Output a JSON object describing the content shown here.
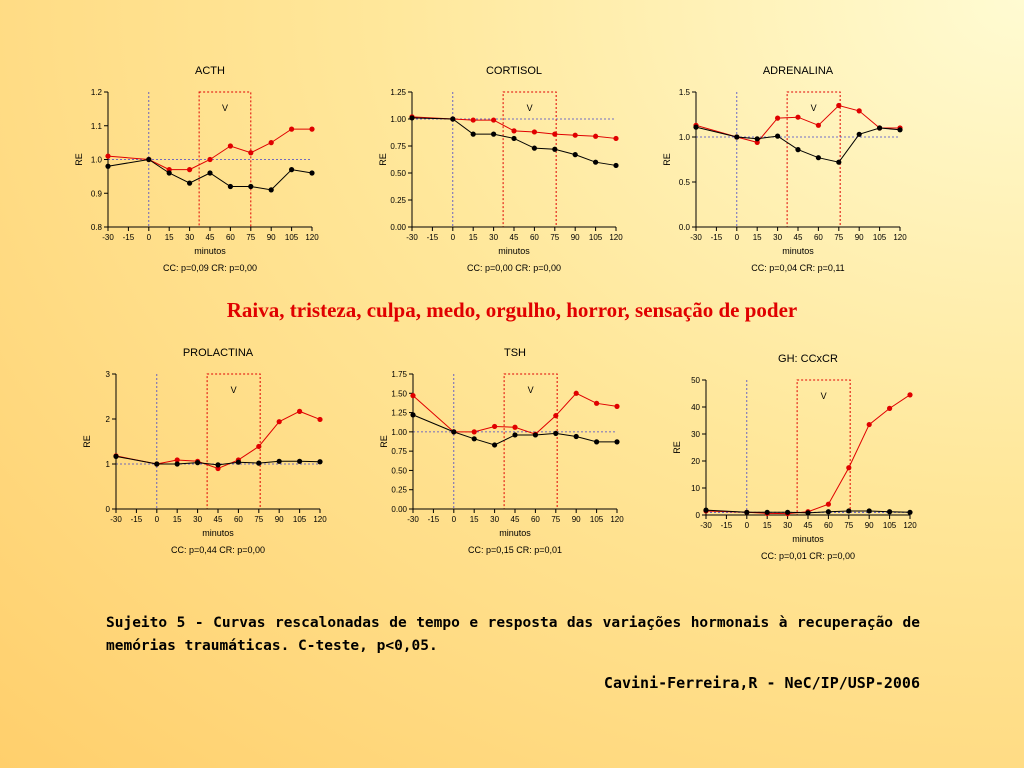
{
  "slide": {
    "headline": "Raiva, tristeza, culpa, medo, orgulho, horror, sensação de poder",
    "caption": "Sujeito 5 - Curvas rescalonadas de tempo e resposta das variações hormonais à recuperação de memórias traumáticas. C-teste, p<0,05.",
    "credit": "Cavini-Ferreira,R - NeC/IP/USP-2006"
  },
  "colors": {
    "series_red": "#e00000",
    "series_black": "#000000",
    "baseline": "#4444cc",
    "window": "#e00000"
  },
  "chart_data": [
    {
      "type": "line",
      "title": "ACTH",
      "xlabel": "minutos",
      "ylabel": "RE",
      "x": [
        -30,
        -15,
        0,
        15,
        30,
        45,
        60,
        75,
        90,
        105,
        120
      ],
      "xlim": [
        -30,
        120
      ],
      "ylim": [
        0.8,
        1.2
      ],
      "yticks": [
        0.8,
        0.9,
        1.0,
        1.1,
        1.2
      ],
      "ytick_labels": [
        "0.8",
        "0.9",
        "1.0",
        "1.1",
        "1.2"
      ],
      "window": [
        37,
        75
      ],
      "window_label": "V",
      "series": [
        {
          "color": "#e00000",
          "values": [
            1.01,
            null,
            1.0,
            0.97,
            0.97,
            1.0,
            1.04,
            1.02,
            1.05,
            1.09,
            1.09
          ]
        },
        {
          "color": "#000000",
          "values": [
            0.98,
            null,
            1.0,
            0.96,
            0.93,
            0.96,
            0.92,
            0.92,
            0.91,
            0.97,
            0.96
          ]
        }
      ],
      "stats": "CC: p=0,09 CR: p=0,00"
    },
    {
      "type": "line",
      "title": "CORTISOL",
      "xlabel": "minutos",
      "ylabel": "RE",
      "x": [
        -30,
        -15,
        0,
        15,
        30,
        45,
        60,
        75,
        90,
        105,
        120
      ],
      "xlim": [
        -30,
        120
      ],
      "ylim": [
        0,
        1.25
      ],
      "yticks": [
        0,
        0.25,
        0.5,
        0.75,
        1.0,
        1.25
      ],
      "ytick_labels": [
        "0.00",
        "0.25",
        "0.50",
        "0.75",
        "1.00",
        "1.25"
      ],
      "window": [
        37,
        76
      ],
      "window_label": "V",
      "series": [
        {
          "color": "#e00000",
          "values": [
            1.02,
            null,
            1.0,
            0.99,
            0.99,
            0.89,
            0.88,
            0.86,
            0.85,
            0.84,
            0.82
          ]
        },
        {
          "color": "#000000",
          "values": [
            1.01,
            null,
            1.0,
            0.86,
            0.86,
            0.82,
            0.73,
            0.72,
            0.67,
            0.6,
            0.57
          ]
        }
      ],
      "stats": "CC: p=0,00 CR: p=0,00"
    },
    {
      "type": "line",
      "title": "ADRENALINA",
      "xlabel": "minutos",
      "ylabel": "RE",
      "x": [
        -30,
        -15,
        0,
        15,
        30,
        45,
        60,
        75,
        90,
        105,
        120
      ],
      "xlim": [
        -30,
        120
      ],
      "ylim": [
        0,
        1.5
      ],
      "yticks": [
        0,
        0.5,
        1.0,
        1.5
      ],
      "ytick_labels": [
        "0.0",
        "0.5",
        "1.0",
        "1.5"
      ],
      "window": [
        37,
        76
      ],
      "window_label": "V",
      "series": [
        {
          "color": "#e00000",
          "values": [
            1.13,
            null,
            1.0,
            0.94,
            1.21,
            1.22,
            1.13,
            1.35,
            1.29,
            1.1,
            1.1
          ]
        },
        {
          "color": "#000000",
          "values": [
            1.11,
            null,
            1.0,
            0.98,
            1.01,
            0.86,
            0.77,
            0.72,
            1.03,
            1.1,
            1.08
          ]
        }
      ],
      "stats": "CC: p=0,04 CR: p=0,11"
    },
    {
      "type": "line",
      "title": "PROLACTINA",
      "xlabel": "minutos",
      "ylabel": "RE",
      "x": [
        -30,
        -15,
        0,
        15,
        30,
        45,
        60,
        75,
        90,
        105,
        120
      ],
      "xlim": [
        -30,
        120
      ],
      "ylim": [
        0,
        3
      ],
      "yticks": [
        0,
        1,
        2,
        3
      ],
      "ytick_labels": [
        "0",
        "1",
        "2",
        "3"
      ],
      "window": [
        37,
        76
      ],
      "window_label": "V",
      "series": [
        {
          "color": "#e00000",
          "values": [
            1.18,
            null,
            1.0,
            1.09,
            1.06,
            0.9,
            1.09,
            1.39,
            1.94,
            2.17,
            1.99
          ]
        },
        {
          "color": "#000000",
          "values": [
            1.17,
            null,
            1.0,
            1.0,
            1.03,
            0.98,
            1.04,
            1.02,
            1.06,
            1.06,
            1.05
          ]
        }
      ],
      "stats": "CC: p=0,44 CR: p=0,00"
    },
    {
      "type": "line",
      "title": "TSH",
      "xlabel": "minutos",
      "ylabel": "RE",
      "x": [
        -30,
        -15,
        0,
        15,
        30,
        45,
        60,
        75,
        90,
        105,
        120
      ],
      "xlim": [
        -30,
        120
      ],
      "ylim": [
        0,
        1.75
      ],
      "yticks": [
        0,
        0.25,
        0.5,
        0.75,
        1.0,
        1.25,
        1.5,
        1.75
      ],
      "ytick_labels": [
        "0.00",
        "0.25",
        "0.50",
        "0.75",
        "1.00",
        "1.25",
        "1.50",
        "1.75"
      ],
      "window": [
        37,
        76
      ],
      "window_label": "V",
      "series": [
        {
          "color": "#e00000",
          "values": [
            1.47,
            null,
            1.0,
            1.0,
            1.07,
            1.06,
            0.97,
            1.21,
            1.5,
            1.37,
            1.33
          ]
        },
        {
          "color": "#000000",
          "values": [
            1.22,
            null,
            1.0,
            0.91,
            0.83,
            0.96,
            0.96,
            0.98,
            0.94,
            0.87,
            0.87
          ]
        }
      ],
      "stats": "CC: p=0,15 CR: p=0,01"
    },
    {
      "type": "line",
      "title": "GH: CCxCR",
      "xlabel": "minutos",
      "ylabel": "RE",
      "x": [
        -30,
        -15,
        0,
        15,
        30,
        45,
        60,
        75,
        90,
        105,
        120
      ],
      "xlim": [
        -30,
        120
      ],
      "ylim": [
        0,
        50
      ],
      "yticks": [
        0,
        10,
        20,
        30,
        40,
        50
      ],
      "ytick_labels": [
        "0",
        "10",
        "20",
        "30",
        "40",
        "50"
      ],
      "window": [
        37,
        76
      ],
      "window_label": "V",
      "series": [
        {
          "color": "#e00000",
          "values": [
            1.5,
            null,
            1.0,
            0.6,
            0.5,
            1.2,
            4.0,
            17.5,
            33.5,
            39.5,
            44.5
          ]
        },
        {
          "color": "#000000",
          "values": [
            1.8,
            null,
            1.0,
            1.0,
            1.0,
            0.8,
            1.2,
            1.5,
            1.5,
            1.2,
            1.0
          ]
        }
      ],
      "stats": "CC: p=0,01 CR: p=0,00"
    }
  ]
}
